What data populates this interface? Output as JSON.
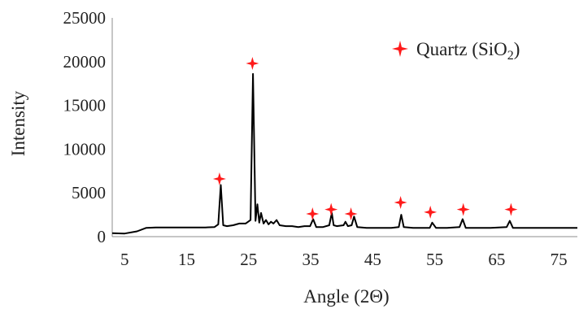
{
  "chart_data": {
    "type": "line",
    "title": "",
    "xlabel": "Angle (2Θ)",
    "ylabel": "Intensity",
    "xlim": [
      3,
      78
    ],
    "ylim": [
      0,
      25000
    ],
    "x_ticks": [
      "5",
      "15",
      "25",
      "35",
      "45",
      "55",
      "65",
      "75"
    ],
    "y_ticks": [
      "0",
      "5000",
      "10000",
      "15000",
      "20000",
      "25000"
    ],
    "grid": false,
    "legend": {
      "placement": "top-right",
      "marker": "red-plus",
      "label_main": "Quartz (SiO",
      "label_sub": "2",
      "label_end": ")"
    },
    "series": [
      {
        "color": "#000000",
        "x": [
          3,
          5,
          7,
          8.5,
          10,
          12,
          14,
          16,
          18,
          19.5,
          20.1,
          20.5,
          20.9,
          21.5,
          22.5,
          23.5,
          24.5,
          25.3,
          25.7,
          26.1,
          26.4,
          26.7,
          27.0,
          27.4,
          27.8,
          28.2,
          28.6,
          29.0,
          29.5,
          30,
          31,
          32,
          33,
          34,
          34.9,
          35.4,
          35.9,
          37,
          38.0,
          38.4,
          38.7,
          39.2,
          40.3,
          40.6,
          41.0,
          41.6,
          42.0,
          42.5,
          44,
          46,
          48,
          49.2,
          49.6,
          50.0,
          51.5,
          53.5,
          54.2,
          54.6,
          55.2,
          57,
          59.0,
          59.5,
          60.0,
          62,
          64,
          66.6,
          67.1,
          67.6,
          68.5,
          70,
          72,
          74,
          76,
          78
        ],
        "y": [
          400,
          350,
          600,
          1000,
          1050,
          1050,
          1050,
          1050,
          1050,
          1100,
          1400,
          5900,
          1300,
          1200,
          1300,
          1500,
          1500,
          1900,
          18600,
          1800,
          3700,
          1600,
          2700,
          1500,
          1900,
          1400,
          1700,
          1500,
          1900,
          1300,
          1200,
          1200,
          1100,
          1200,
          1200,
          2000,
          1100,
          1100,
          1300,
          2700,
          1300,
          1200,
          1300,
          1700,
          1200,
          1300,
          2300,
          1100,
          1000,
          1000,
          1000,
          1100,
          2500,
          1100,
          1000,
          1000,
          1000,
          1600,
          1000,
          1000,
          1100,
          2000,
          1000,
          1000,
          1000,
          1100,
          1800,
          1000,
          1000,
          1000,
          1000,
          1000,
          1000,
          1000
        ]
      }
    ],
    "quartz_markers": [
      {
        "x": 20.3,
        "y": 6600
      },
      {
        "x": 25.6,
        "y": 19800
      },
      {
        "x": 35.3,
        "y": 2600
      },
      {
        "x": 38.3,
        "y": 3100
      },
      {
        "x": 41.5,
        "y": 2600
      },
      {
        "x": 49.5,
        "y": 3900
      },
      {
        "x": 54.3,
        "y": 2800
      },
      {
        "x": 59.6,
        "y": 3100
      },
      {
        "x": 67.3,
        "y": 3100
      }
    ],
    "colors": {
      "line": "#000000",
      "marker": "#ff1a1a",
      "axis": "#8c8c8c",
      "text": "#222222"
    }
  }
}
